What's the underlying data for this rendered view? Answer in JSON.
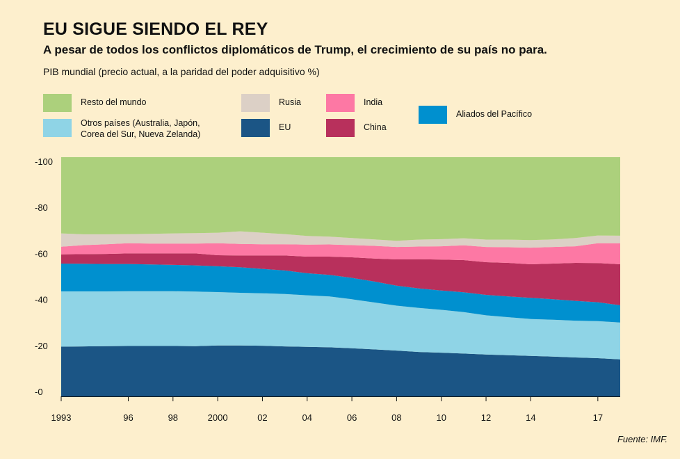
{
  "header": {
    "title": "EU  SIGUE SIENDO EL REY",
    "subtitle": "A pesar de todos los conflictos diplomáticos de Trump, el crecimiento de su país no para.",
    "unit_label": "PIB mundial (precio actual, a la paridad del poder adquisitivo %)"
  },
  "legend": [
    {
      "key": "resto",
      "label": "Resto del mundo",
      "color": "#acd07c"
    },
    {
      "key": "otros",
      "label_lines": [
        "Otros países (Australia, Japón,",
        "Corea del Sur, Nueva Zelanda)"
      ],
      "color": "#8fd4e6"
    },
    {
      "key": "rusia",
      "label": "Rusia",
      "color": "#dcd0c6"
    },
    {
      "key": "eu",
      "label": "EU",
      "color": "#1b5585"
    },
    {
      "key": "india",
      "label": "India",
      "color": "#fd78a4"
    },
    {
      "key": "china",
      "label": "China",
      "color": "#b8305c"
    },
    {
      "key": "aliados",
      "label": "Aliados del Pacífico",
      "color": "#0090cf"
    }
  ],
  "source": "Fuente: IMF.",
  "chart_data": {
    "type": "area",
    "stacked": true,
    "title": "EU  SIGUE SIENDO EL REY",
    "subtitle": "A pesar de todos los conflictos diplomáticos de Trump, el crecimiento de su país no para.",
    "ylabel": "PIB mundial (precio actual, a la paridad del poder adquisitivo %)",
    "xlabel": "",
    "ylim": [
      0,
      100
    ],
    "xlim": [
      1993,
      2018
    ],
    "yticks": [
      0,
      20,
      40,
      60,
      80,
      100
    ],
    "ytick_labels": [
      "-0",
      "-20",
      "-40",
      "-60",
      "-80",
      "-100"
    ],
    "xticks": [
      1993,
      1996,
      1998,
      2000,
      2002,
      2004,
      2006,
      2008,
      2010,
      2012,
      2014,
      2017
    ],
    "xtick_labels": [
      "1993",
      "96",
      "98",
      "2000",
      "02",
      "04",
      "06",
      "08",
      "10",
      "12",
      "14",
      "17"
    ],
    "grid": false,
    "legend_position": "top",
    "x": [
      1993,
      1994,
      1995,
      1996,
      1997,
      1998,
      1999,
      2000,
      2001,
      2002,
      2003,
      2004,
      2005,
      2006,
      2007,
      2008,
      2009,
      2010,
      2011,
      2012,
      2013,
      2014,
      2015,
      2016,
      2017,
      2018
    ],
    "series": [
      {
        "name": "EU",
        "values": [
          19.5,
          19.6,
          19.7,
          19.8,
          19.8,
          19.8,
          19.7,
          20.0,
          20.0,
          19.9,
          19.6,
          19.4,
          19.2,
          18.8,
          18.3,
          17.8,
          17.2,
          16.9,
          16.5,
          16.1,
          15.8,
          15.5,
          15.2,
          14.8,
          14.5,
          14.0
        ]
      },
      {
        "name": "Otros países (Australia, Japón, Corea del Sur, Nueva Zelanda)",
        "values": [
          24.0,
          23.9,
          23.8,
          23.8,
          23.8,
          23.8,
          23.7,
          23.2,
          22.9,
          22.8,
          22.8,
          22.4,
          22.1,
          21.3,
          20.4,
          19.5,
          19.1,
          18.6,
          18.0,
          17.0,
          16.5,
          16.0,
          16.0,
          16.0,
          16.1,
          16.0
        ]
      },
      {
        "name": "Aliados del Pacífico",
        "values": [
          12.1,
          12.0,
          11.9,
          11.8,
          11.6,
          11.4,
          11.4,
          11.2,
          11.1,
          10.6,
          10.2,
          9.6,
          9.4,
          9.3,
          9.1,
          8.7,
          8.5,
          8.4,
          8.6,
          8.9,
          9.0,
          9.2,
          8.9,
          8.6,
          8.2,
          7.5
        ]
      },
      {
        "name": "China",
        "values": [
          4.0,
          4.2,
          4.4,
          4.6,
          4.8,
          5.0,
          5.2,
          4.8,
          5.1,
          5.8,
          6.5,
          7.2,
          7.9,
          8.9,
          10.0,
          11.4,
          12.7,
          13.4,
          14.0,
          14.2,
          14.6,
          14.6,
          15.5,
          16.5,
          17.0,
          17.8
        ]
      },
      {
        "name": "India",
        "values": [
          3.3,
          3.9,
          4.2,
          4.4,
          4.3,
          4.3,
          4.3,
          5.2,
          5.0,
          4.9,
          4.9,
          5.2,
          5.3,
          5.3,
          5.5,
          5.4,
          5.5,
          5.8,
          6.4,
          6.6,
          6.8,
          7.2,
          7.2,
          7.2,
          8.6,
          9.1
        ]
      },
      {
        "name": "Rusia",
        "values": [
          5.8,
          4.7,
          4.3,
          4.0,
          4.2,
          4.4,
          4.5,
          4.6,
          5.5,
          5.0,
          4.4,
          3.8,
          3.4,
          3.1,
          2.8,
          2.7,
          3.0,
          3.1,
          3.1,
          3.2,
          3.3,
          3.3,
          3.3,
          3.6,
          3.4,
          3.3
        ]
      },
      {
        "name": "Resto del mundo",
        "values": [
          31.3,
          31.7,
          31.7,
          31.6,
          31.5,
          31.3,
          31.2,
          31.0,
          30.4,
          31.0,
          31.6,
          32.4,
          32.7,
          33.3,
          33.9,
          34.5,
          34.0,
          33.8,
          33.4,
          34.0,
          34.0,
          34.2,
          33.9,
          33.3,
          32.2,
          32.3
        ]
      }
    ]
  }
}
